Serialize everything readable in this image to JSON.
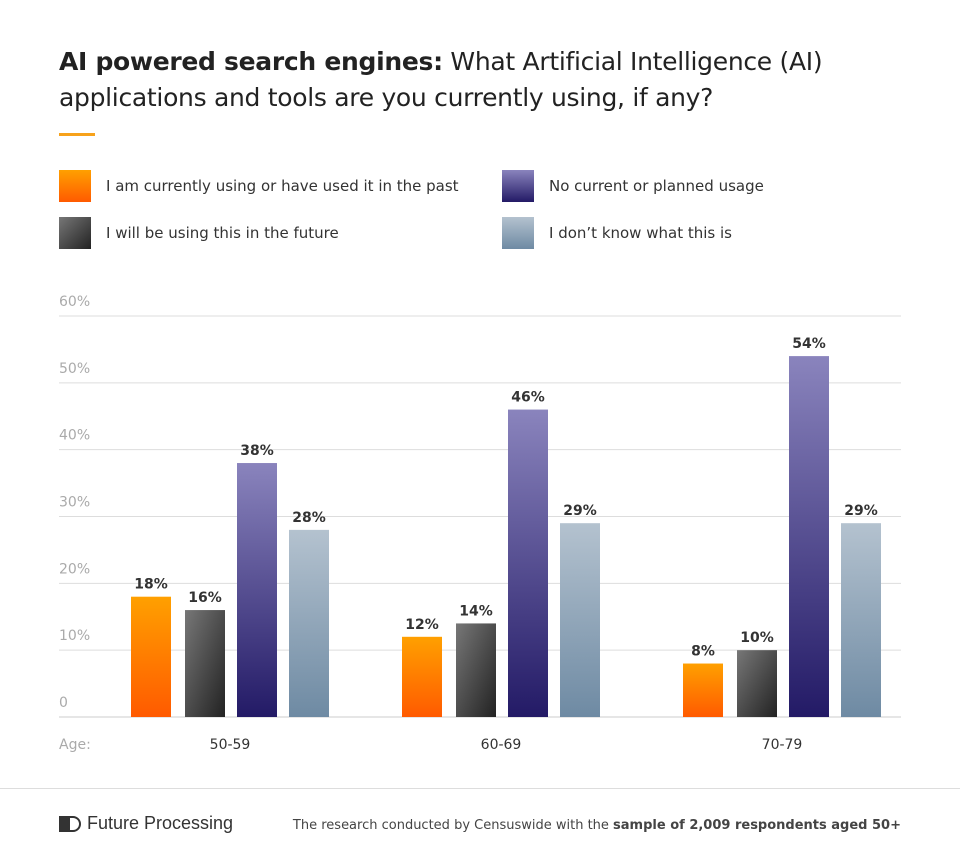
{
  "chart_data": {
    "type": "bar",
    "title_bold": "AI powered search engines:",
    "title": "What Artificial Intelligence (AI) applications and tools are you currently using, if any?",
    "xlabel": "Age:",
    "ylabel": "",
    "ylim": [
      0,
      60
    ],
    "yticks": [
      "0",
      "10%",
      "20%",
      "30%",
      "40%",
      "50%",
      "60%"
    ],
    "categories": [
      "50-59",
      "60-69",
      "70-79"
    ],
    "legend_position": "top",
    "series": [
      {
        "name": "I am currently using or have used it in the past",
        "values": [
          18,
          12,
          8
        ],
        "labels": [
          "18%",
          "12%",
          "8%"
        ],
        "color": [
          "#ffa000",
          "#ff5a00"
        ]
      },
      {
        "name": "I will be using this in the future",
        "values": [
          16,
          14,
          10
        ],
        "labels": [
          "16%",
          "14%",
          "10%"
        ],
        "color": [
          "#777777",
          "#222222"
        ]
      },
      {
        "name": "No current or planned usage",
        "values": [
          38,
          46,
          54
        ],
        "labels": [
          "38%",
          "46%",
          "54%"
        ],
        "color": [
          "#8a84bd",
          "#231a66"
        ]
      },
      {
        "name": "I don’t know what this is",
        "values": [
          28,
          29,
          29
        ],
        "labels": [
          "28%",
          "29%",
          "29%"
        ],
        "color": [
          "#b4c2cf",
          "#6e8aa3"
        ]
      }
    ]
  },
  "footer": {
    "brand": "Future Processing",
    "note_plain": "The research conducted by Censuswide with the ",
    "note_bold": "sample of 2,009 respondents aged 50+"
  }
}
